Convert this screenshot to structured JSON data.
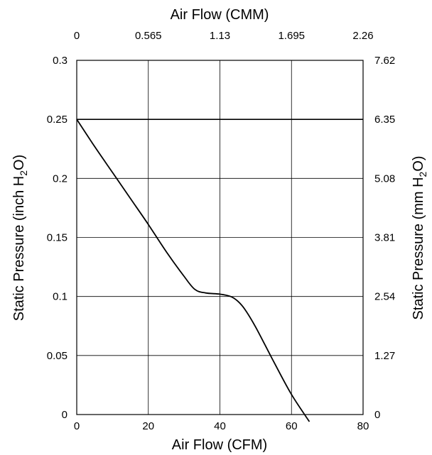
{
  "chart_data": {
    "type": "line",
    "title": "",
    "xlabel": "Air Flow (CFM)",
    "x2label": "Air Flow (CMM)",
    "ylabel": {
      "main": "Static Pressure (inch H",
      "sub": "2",
      "tail": "O)"
    },
    "y2label": {
      "main": "Static Pressure (mm H",
      "sub": "2",
      "tail": "O)"
    },
    "xlim": [
      0,
      80
    ],
    "ylim": [
      0,
      0.3
    ],
    "grid": true,
    "x_ticks": [
      {
        "value": 0,
        "label": "0"
      },
      {
        "value": 20,
        "label": "20"
      },
      {
        "value": 40,
        "label": "40"
      },
      {
        "value": 60,
        "label": "60"
      },
      {
        "value": 80,
        "label": "80"
      }
    ],
    "y_ticks": [
      {
        "value": 0,
        "label": "0"
      },
      {
        "value": 0.05,
        "label": "0.05"
      },
      {
        "value": 0.1,
        "label": "0.1"
      },
      {
        "value": 0.15,
        "label": "0.15"
      },
      {
        "value": 0.2,
        "label": "0.2"
      },
      {
        "value": 0.25,
        "label": "0.25"
      },
      {
        "value": 0.3,
        "label": "0.3"
      }
    ],
    "x2_ticks": [
      {
        "value": 0,
        "label": "0"
      },
      {
        "value": 20,
        "label": "0.565"
      },
      {
        "value": 40,
        "label": "1.13"
      },
      {
        "value": 60,
        "label": "1.695"
      },
      {
        "value": 80,
        "label": "2.26"
      }
    ],
    "y2_ticks": [
      {
        "value": 0,
        "label": "0"
      },
      {
        "value": 0.05,
        "label": "1.27"
      },
      {
        "value": 0.1,
        "label": "2.54"
      },
      {
        "value": 0.15,
        "label": "3.81"
      },
      {
        "value": 0.2,
        "label": "5.08"
      },
      {
        "value": 0.25,
        "label": "6.35"
      },
      {
        "value": 0.3,
        "label": "7.62"
      }
    ],
    "series": [
      {
        "color": "#000000",
        "x": [
          0,
          5,
          10,
          15,
          20,
          25,
          30,
          33,
          36,
          40,
          43,
          45,
          47,
          50,
          55,
          60,
          65
        ],
        "y": [
          0.25,
          0.227,
          0.205,
          0.183,
          0.161,
          0.138,
          0.117,
          0.106,
          0.103,
          0.102,
          0.1,
          0.096,
          0.089,
          0.074,
          0.045,
          0.017,
          -0.006
        ]
      }
    ],
    "reference_lines": [
      {
        "axis": "y",
        "value": 0.25,
        "color": "#000000"
      }
    ]
  }
}
